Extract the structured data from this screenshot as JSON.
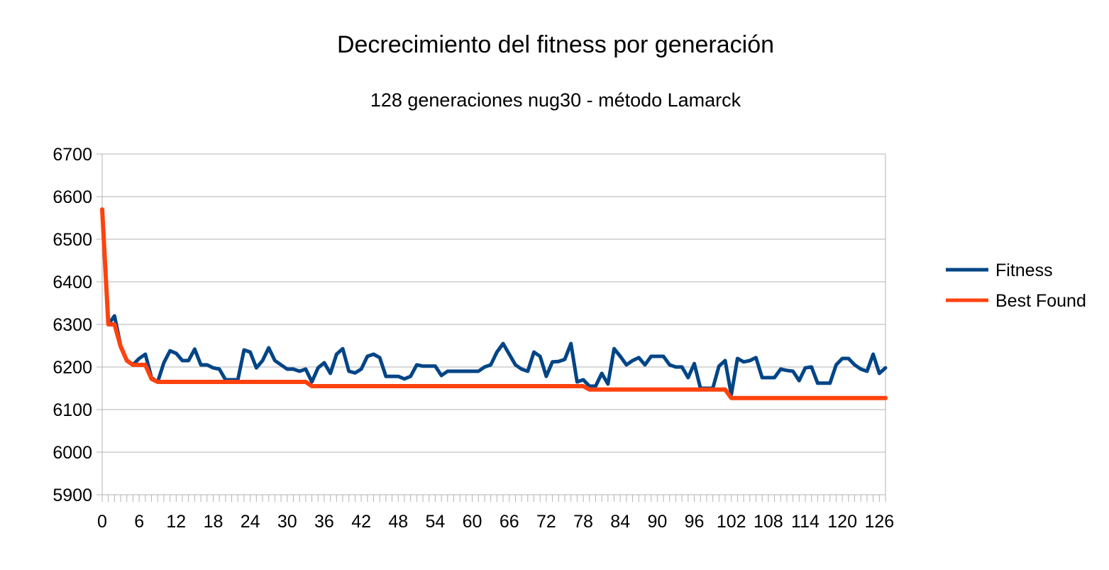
{
  "chart_data": {
    "type": "line",
    "title": "Decrecimiento del fitness por generación",
    "subtitle": "128 generaciones nug30 - método Lamarck",
    "xlabel": "",
    "ylabel": "",
    "ylim": [
      5900,
      6700
    ],
    "yticks": [
      5900,
      6000,
      6100,
      6200,
      6300,
      6400,
      6500,
      6600,
      6700
    ],
    "xlim": [
      0,
      127
    ],
    "xticks": [
      0,
      6,
      12,
      18,
      24,
      30,
      36,
      42,
      48,
      54,
      60,
      66,
      72,
      78,
      84,
      90,
      96,
      102,
      108,
      114,
      120,
      126
    ],
    "grid": true,
    "legend_position": "right",
    "x": [
      0,
      1,
      2,
      3,
      4,
      5,
      6,
      7,
      8,
      9,
      10,
      11,
      12,
      13,
      14,
      15,
      16,
      17,
      18,
      19,
      20,
      21,
      22,
      23,
      24,
      25,
      26,
      27,
      28,
      29,
      30,
      31,
      32,
      33,
      34,
      35,
      36,
      37,
      38,
      39,
      40,
      41,
      42,
      43,
      44,
      45,
      46,
      47,
      48,
      49,
      50,
      51,
      52,
      53,
      54,
      55,
      56,
      57,
      58,
      59,
      60,
      61,
      62,
      63,
      64,
      65,
      66,
      67,
      68,
      69,
      70,
      71,
      72,
      73,
      74,
      75,
      76,
      77,
      78,
      79,
      80,
      81,
      82,
      83,
      84,
      85,
      86,
      87,
      88,
      89,
      90,
      91,
      92,
      93,
      94,
      95,
      96,
      97,
      98,
      99,
      100,
      101,
      102,
      103,
      104,
      105,
      106,
      107,
      108,
      109,
      110,
      111,
      112,
      113,
      114,
      115,
      116,
      117,
      118,
      119,
      120,
      121,
      122,
      123,
      124,
      125,
      126,
      127
    ],
    "series": [
      {
        "name": "Fitness",
        "color": "#004586",
        "values": [
          6570,
          6300,
          6320,
          6250,
          6215,
          6205,
          6220,
          6230,
          6175,
          6165,
          6210,
          6238,
          6232,
          6215,
          6215,
          6242,
          6205,
          6205,
          6198,
          6195,
          6170,
          6170,
          6170,
          6240,
          6235,
          6198,
          6215,
          6245,
          6215,
          6205,
          6195,
          6195,
          6190,
          6195,
          6165,
          6198,
          6210,
          6185,
          6230,
          6243,
          6190,
          6186,
          6195,
          6225,
          6230,
          6222,
          6178,
          6178,
          6178,
          6172,
          6178,
          6205,
          6202,
          6202,
          6202,
          6180,
          6190,
          6190,
          6190,
          6190,
          6190,
          6190,
          6200,
          6205,
          6235,
          6255,
          6230,
          6205,
          6195,
          6190,
          6235,
          6225,
          6178,
          6212,
          6213,
          6218,
          6255,
          6165,
          6170,
          6155,
          6155,
          6185,
          6160,
          6243,
          6225,
          6205,
          6215,
          6222,
          6205,
          6225,
          6225,
          6225,
          6205,
          6200,
          6200,
          6175,
          6208,
          6150,
          6150,
          6150,
          6202,
          6215,
          6135,
          6220,
          6212,
          6215,
          6222,
          6175,
          6175,
          6175,
          6195,
          6192,
          6190,
          6168,
          6198,
          6200,
          6162,
          6162,
          6162,
          6205,
          6220,
          6220,
          6205,
          6195,
          6190,
          6230,
          6185,
          6198
        ]
      },
      {
        "name": "Best Found",
        "color": "#ff420e",
        "values": [
          6570,
          6300,
          6300,
          6248,
          6215,
          6205,
          6205,
          6205,
          6172,
          6165,
          6165,
          6165,
          6165,
          6165,
          6165,
          6165,
          6165,
          6165,
          6165,
          6165,
          6165,
          6165,
          6165,
          6165,
          6165,
          6165,
          6165,
          6165,
          6165,
          6165,
          6165,
          6165,
          6165,
          6165,
          6155,
          6155,
          6155,
          6155,
          6155,
          6155,
          6155,
          6155,
          6155,
          6155,
          6155,
          6155,
          6155,
          6155,
          6155,
          6155,
          6155,
          6155,
          6155,
          6155,
          6155,
          6155,
          6155,
          6155,
          6155,
          6155,
          6155,
          6155,
          6155,
          6155,
          6155,
          6155,
          6155,
          6155,
          6155,
          6155,
          6155,
          6155,
          6155,
          6155,
          6155,
          6155,
          6155,
          6155,
          6155,
          6147,
          6147,
          6147,
          6147,
          6147,
          6147,
          6147,
          6147,
          6147,
          6147,
          6147,
          6147,
          6147,
          6147,
          6147,
          6147,
          6147,
          6147,
          6147,
          6147,
          6147,
          6147,
          6147,
          6127,
          6127,
          6127,
          6127,
          6127,
          6127,
          6127,
          6127,
          6127,
          6127,
          6127,
          6127,
          6127,
          6127,
          6127,
          6127,
          6127,
          6127,
          6127,
          6127,
          6127,
          6127,
          6127,
          6127,
          6127,
          6127
        ]
      }
    ]
  }
}
